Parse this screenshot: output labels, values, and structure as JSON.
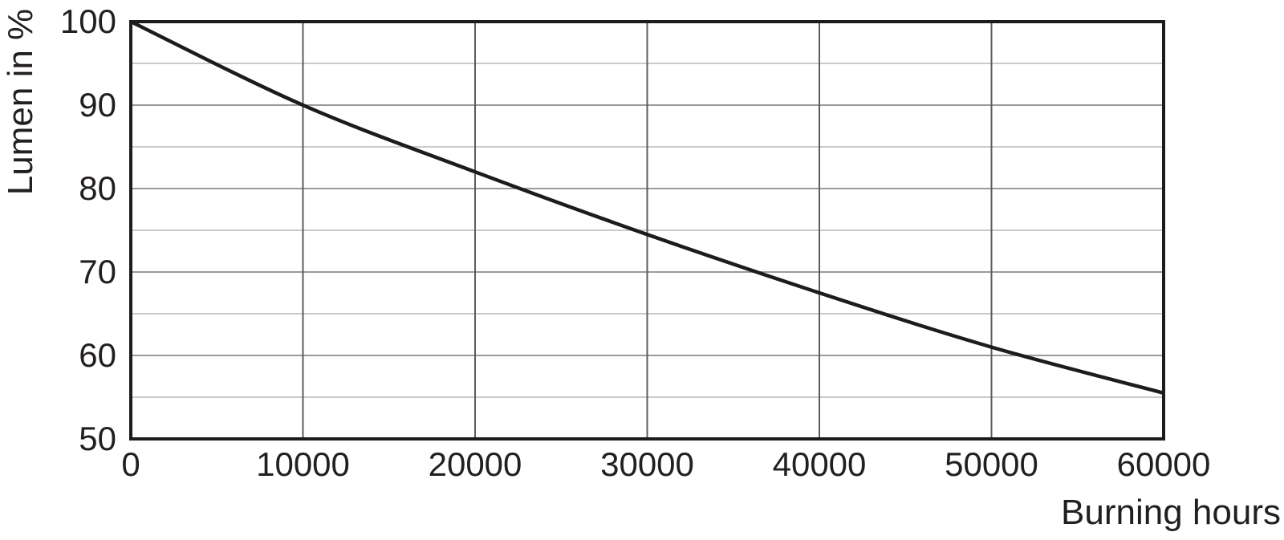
{
  "chart_data": {
    "type": "line",
    "title": "",
    "xlabel": "Burning hours",
    "ylabel": "Lumen in %",
    "x": [
      0,
      10000,
      20000,
      30000,
      40000,
      50000,
      60000
    ],
    "y": [
      100,
      90,
      82,
      74.5,
      67.5,
      61,
      55.5
    ],
    "xlim": [
      0,
      60000
    ],
    "ylim": [
      50,
      100
    ],
    "x_ticks": [
      0,
      10000,
      20000,
      30000,
      40000,
      50000,
      60000
    ],
    "x_tick_labels": [
      "0",
      "10000",
      "20000",
      "30000",
      "40000",
      "50000",
      "60000"
    ],
    "y_ticks": [
      100,
      90,
      80,
      70,
      60,
      50
    ],
    "y_tick_labels": [
      "100",
      "90",
      "80",
      "70",
      "60",
      "50"
    ],
    "y_minor_grid_step": 5,
    "y_major_grid_step": 10,
    "grid": true,
    "legend": false,
    "colors": {
      "background": "#ffffff",
      "text": "#231f20",
      "frame": "#1c1c1c",
      "line": "#1c1c1c",
      "vertical_grid": "#5c5c5c",
      "major_horizontal_grid": "#9a9a9a",
      "minor_horizontal_grid": "#b9b9b9"
    }
  }
}
